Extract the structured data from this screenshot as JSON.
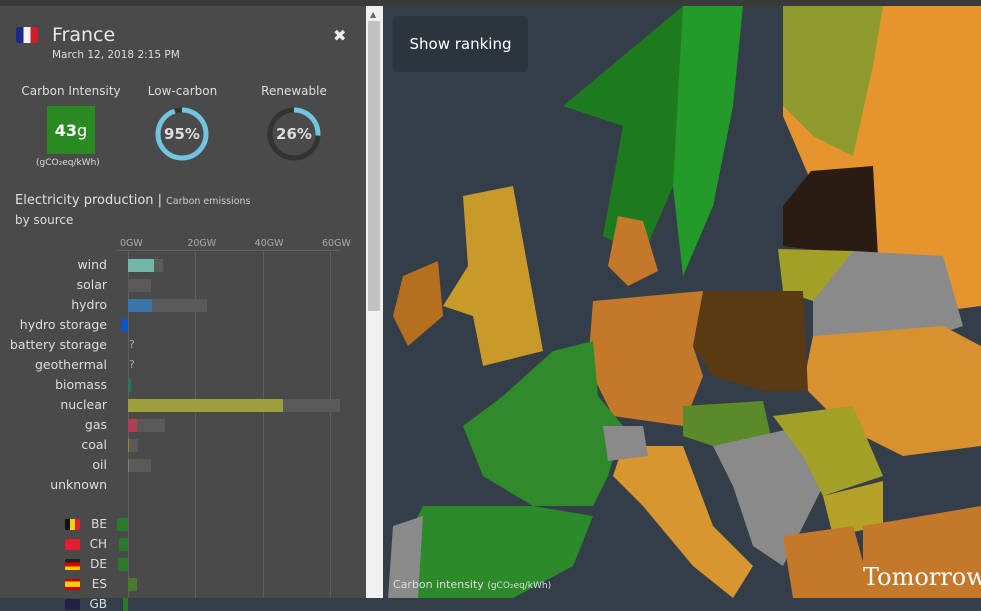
{
  "panel": {
    "country": "France",
    "datetime": "March 12, 2018 2:15 PM",
    "close_icon": "close-x-icon",
    "carbon_intensity": {
      "label": "Carbon Intensity",
      "value": "43",
      "unit_suffix": "g",
      "unit": "(gCO₂eq/kWh)",
      "color": "#2a8a22"
    },
    "low_carbon": {
      "label": "Low-carbon",
      "value": "95%",
      "fraction": 0.95
    },
    "renewable": {
      "label": "Renewable",
      "value": "26%",
      "fraction": 0.26
    },
    "gauge_color": "#72c5e2",
    "section_title": "Electricity production",
    "section_alt": "Carbon emissions",
    "section_sub": "by source"
  },
  "chart_data": {
    "type": "bar",
    "xlabel_ticks": [
      "0GW",
      "20GW",
      "40GW",
      "60GW"
    ],
    "xlim": [
      0,
      60
    ],
    "categories": [
      "wind",
      "solar",
      "hydro",
      "hydro storage",
      "battery storage",
      "geothermal",
      "biomass",
      "nuclear",
      "gas",
      "coal",
      "oil",
      "unknown"
    ],
    "production": [
      7.7,
      0,
      7.1,
      -2,
      null,
      null,
      1,
      46,
      2.7,
      0.2,
      0.2,
      0
    ],
    "capacity": [
      10.4,
      6.8,
      23.4,
      0,
      null,
      null,
      0,
      63,
      11,
      3,
      6.8,
      0
    ],
    "colors": [
      "#72b6a8",
      "#f8c436",
      "#3a74a8",
      "#0c57c6",
      "#888",
      "#888",
      "#277a5e",
      "#9ca03a",
      "#b13d55",
      "#ac8328",
      "#867d66",
      "#aaa"
    ],
    "unknown_marker": "?",
    "exchanges": [
      {
        "code": "BE",
        "value": -3.3,
        "color": "#2a7a2a"
      },
      {
        "code": "CH",
        "value": -2.7,
        "color": "#2a7a2a"
      },
      {
        "code": "DE",
        "value": -3.0,
        "color": "#2a7a2a"
      },
      {
        "code": "ES",
        "value": 2.7,
        "color": "#4b7a2a"
      },
      {
        "code": "GB",
        "value": -1.5,
        "color": "#2a7a2a"
      }
    ]
  },
  "map": {
    "ranking_button": "Show ranking",
    "legend": "Carbon intensity",
    "legend_unit": "(gCO₂eq/kWh)",
    "brand": "Tomorrow"
  }
}
